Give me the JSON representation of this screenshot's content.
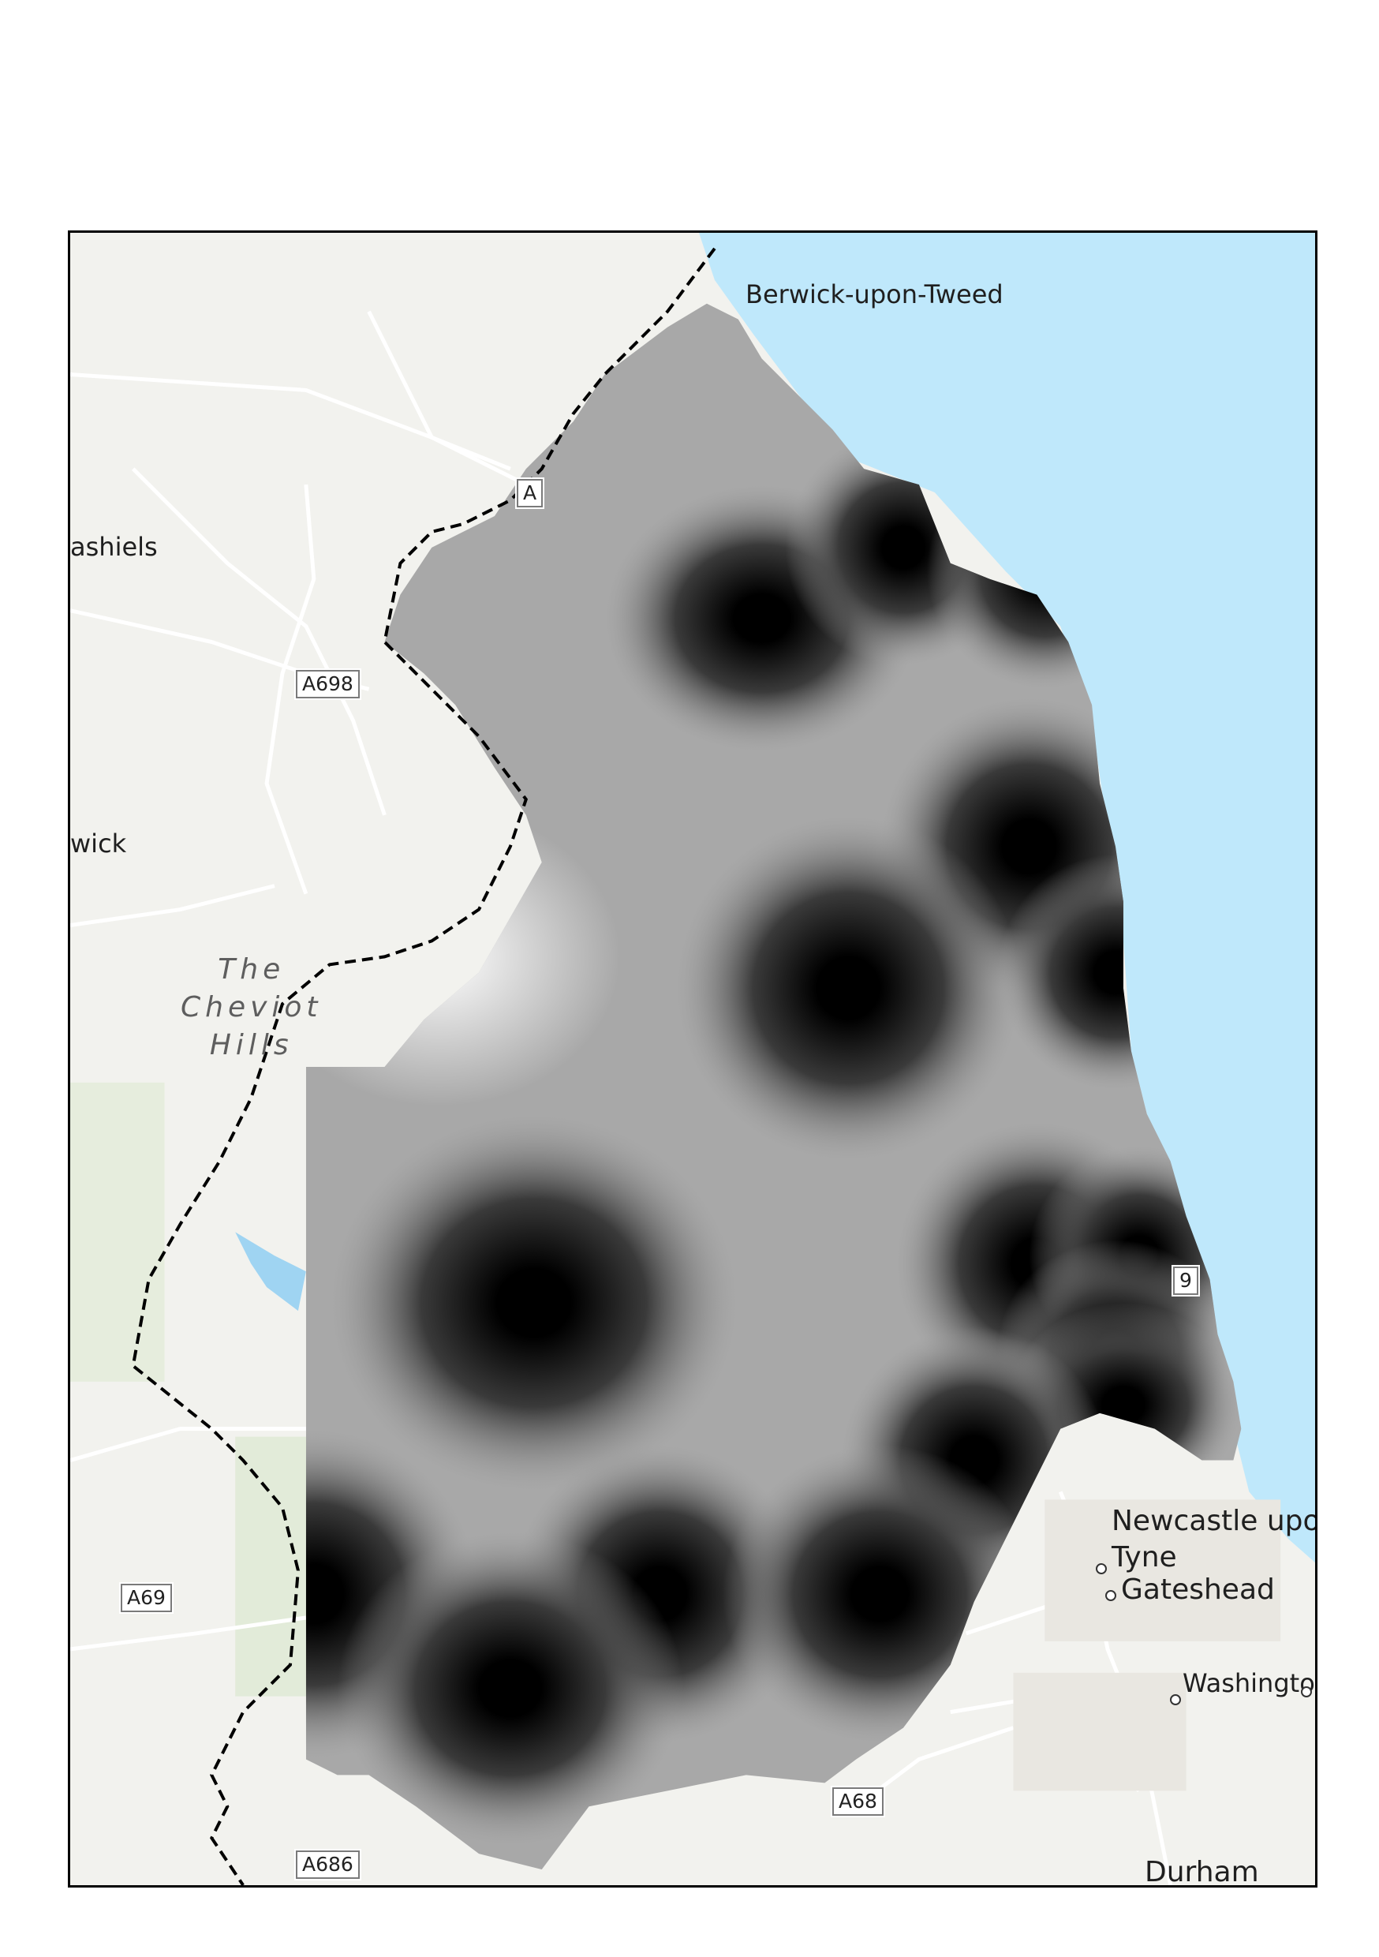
{
  "map": {
    "places": [
      {
        "id": "berwick",
        "label": "Berwick-upon-Tweed"
      },
      {
        "id": "galashiels",
        "label": "ashiels"
      },
      {
        "id": "hawick",
        "label": "wick"
      },
      {
        "id": "newcastle",
        "label": "Newcastle upon\nTyne"
      },
      {
        "id": "gateshead",
        "label": "Gateshead"
      },
      {
        "id": "washington",
        "label": "Washington"
      },
      {
        "id": "durham",
        "label": "Durham"
      }
    ],
    "hills_label": "The\nCheviot\nHills",
    "road_shields": [
      "A",
      "A698",
      "A69",
      "A686",
      "A68",
      "9"
    ],
    "colors": {
      "sea": "#bfe8fb",
      "land": "#f2f2ee",
      "surface_dark": "#000000",
      "surface_light": "#ffffff",
      "boundary": "#000000",
      "roads": "#ffffff"
    }
  }
}
